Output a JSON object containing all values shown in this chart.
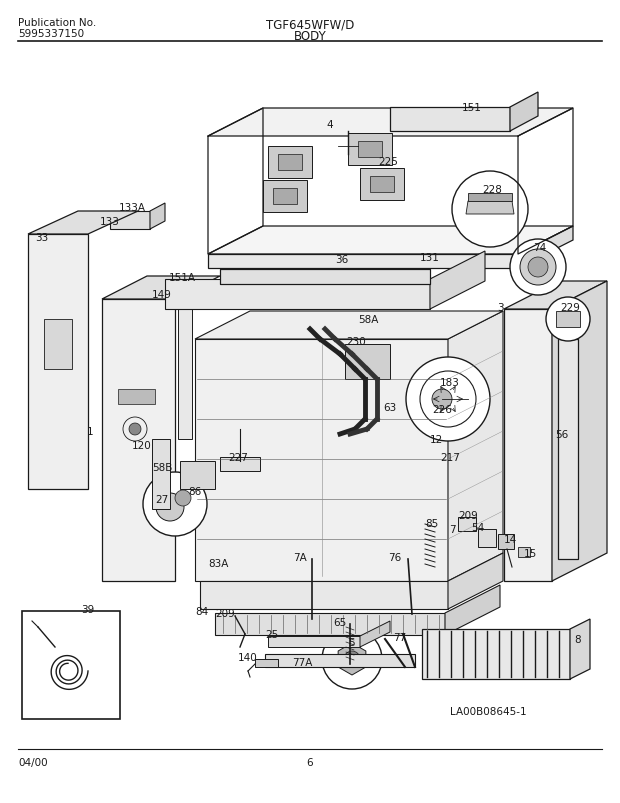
{
  "title_model": "TGF645WFW/D",
  "title_section": "BODY",
  "pub_no_label": "Publication No.",
  "pub_no": "5995337150",
  "footer_date": "04/00",
  "footer_page": "6",
  "diagram_id": "LA00B08645-1",
  "bg_color": "#ffffff",
  "line_color": "#1a1a1a",
  "text_color": "#1a1a1a",
  "figsize": [
    6.2,
    8.04
  ],
  "dpi": 100
}
